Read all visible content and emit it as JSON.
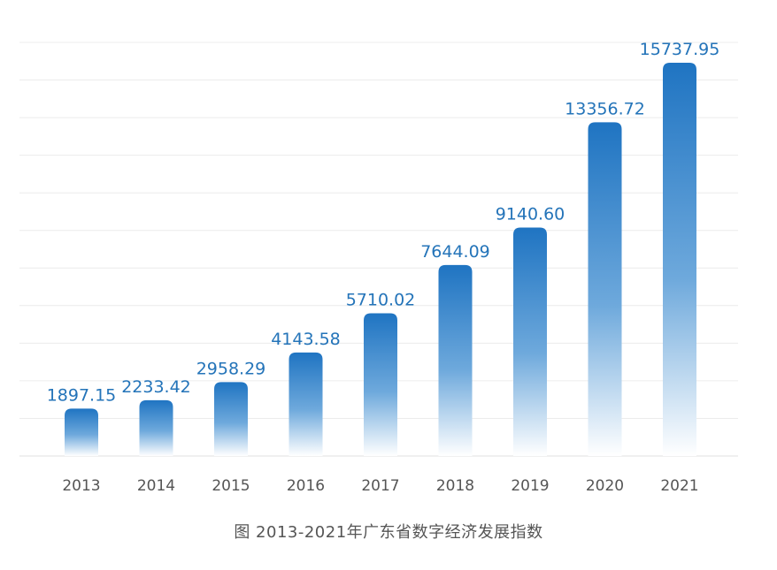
{
  "chart_data": {
    "type": "bar",
    "title": "",
    "xlabel": "",
    "ylabel": "",
    "categories": [
      "2013",
      "2014",
      "2015",
      "2016",
      "2017",
      "2018",
      "2019",
      "2020",
      "2021"
    ],
    "values": [
      1897.15,
      2233.42,
      2958.29,
      4143.58,
      5710.02,
      7644.09,
      9140.6,
      13356.72,
      15737.95
    ],
    "value_labels": [
      "1897.15",
      "2233.42",
      "2958.29",
      "4143.58",
      "5710.02",
      "7644.09",
      "9140.60",
      "13356.72",
      "15737.95"
    ],
    "ylim": [
      0,
      17000
    ],
    "grid": true,
    "legend": "none",
    "colors": {
      "bar_top": "#1f74c2",
      "bar_bottom": "#ffffff",
      "value_label": "#2474b9"
    }
  },
  "caption": "图   2013-2021年广东省数字经济发展指数"
}
